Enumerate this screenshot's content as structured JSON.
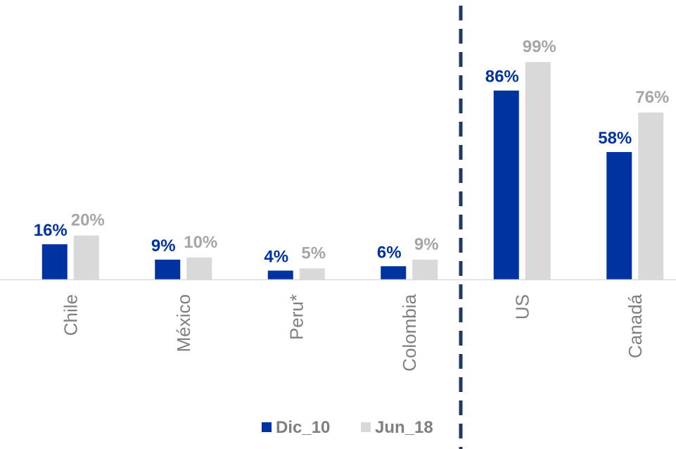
{
  "chart_data": {
    "type": "bar",
    "categories": [
      "Chile",
      "México",
      "Peru*",
      "Colombia",
      "US",
      "Canadá"
    ],
    "series": [
      {
        "name": "Dic_10",
        "color": "#0033a0",
        "values": [
          16,
          9,
          4,
          6,
          86,
          58
        ],
        "labels": [
          "16%",
          "9%",
          "4%",
          "6%",
          "86%",
          "58%"
        ]
      },
      {
        "name": "Jun_18",
        "color": "#d9d9d9",
        "label_color": "#a6a6a6",
        "values": [
          20,
          10,
          5,
          9,
          99,
          76
        ],
        "labels": [
          "20%",
          "10%",
          "5%",
          "9%",
          "99%",
          "76%"
        ]
      }
    ],
    "ylim": [
      0,
      100
    ],
    "grid": false,
    "legend": "bottom",
    "divider": "dashed vertical line between Colombia and US",
    "divider_color": "#1f3864"
  }
}
